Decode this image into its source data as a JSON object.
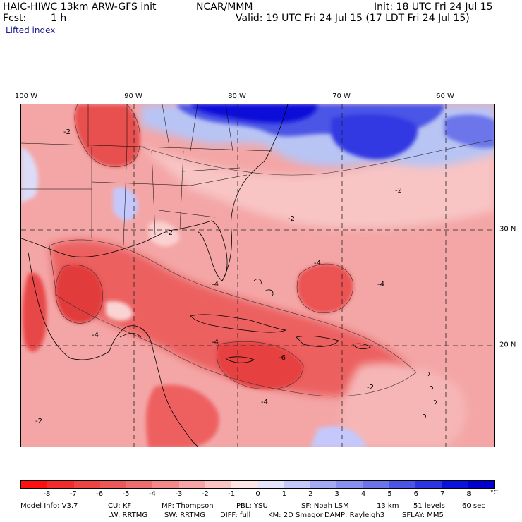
{
  "header": {
    "model": "HAIC-HIWC 13km ARW-GFS init",
    "org": "NCAR/MMM",
    "init": "Init: 18 UTC Fri 24 Jul 15",
    "fcst_label": "Fcst:",
    "fcst_value": "1 h",
    "valid": "Valid: 19 UTC Fri 24 Jul 15 (17 LDT Fri 24 Jul 15)",
    "field": "Lifted index"
  },
  "map": {
    "lon_labels": [
      "100 W",
      "90 W",
      "80 W",
      "70 W",
      "60 W"
    ],
    "lat_labels": [
      "30 N",
      "20 N"
    ],
    "contour_labels": [
      "-2",
      "-4",
      "-6"
    ],
    "grid": true,
    "colors": {
      "ocean_base": "#f4a0a0",
      "strong_negative": "#e83c3c",
      "stable_blue": "#2020e0",
      "light_blue": "#b8c4f4"
    }
  },
  "colorbar": {
    "ticks": [
      "-8",
      "-7",
      "-6",
      "-5",
      "-4",
      "-3",
      "-2",
      "-1",
      "0",
      "1",
      "2",
      "3",
      "4",
      "5",
      "6",
      "7",
      "8"
    ],
    "unit": "°C",
    "colors": [
      "#ff1010",
      "#f52a2a",
      "#ee4444",
      "#ec5858",
      "#ee6e6e",
      "#f28888",
      "#f6a4a4",
      "#fac4c4",
      "#fde4e4",
      "#e4e4fd",
      "#c4c8fa",
      "#a4aaf4",
      "#8890ee",
      "#6c74ea",
      "#4c54e6",
      "#2c34e4",
      "#0a12e0",
      "#0000d0"
    ]
  },
  "info": {
    "line1": [
      "Model Info: V3.7",
      "CU: KF",
      "MP: Thompson",
      "PBL: YSU",
      "SF: Noah LSM",
      "13 km",
      "51 levels",
      "60 sec"
    ],
    "line2": [
      "LW: RRTMG",
      "SW: RRTMG",
      "DIFF: full",
      "KM: 2D Smagor",
      "DAMP: Rayleigh3",
      "SFLAY: MM5"
    ]
  }
}
